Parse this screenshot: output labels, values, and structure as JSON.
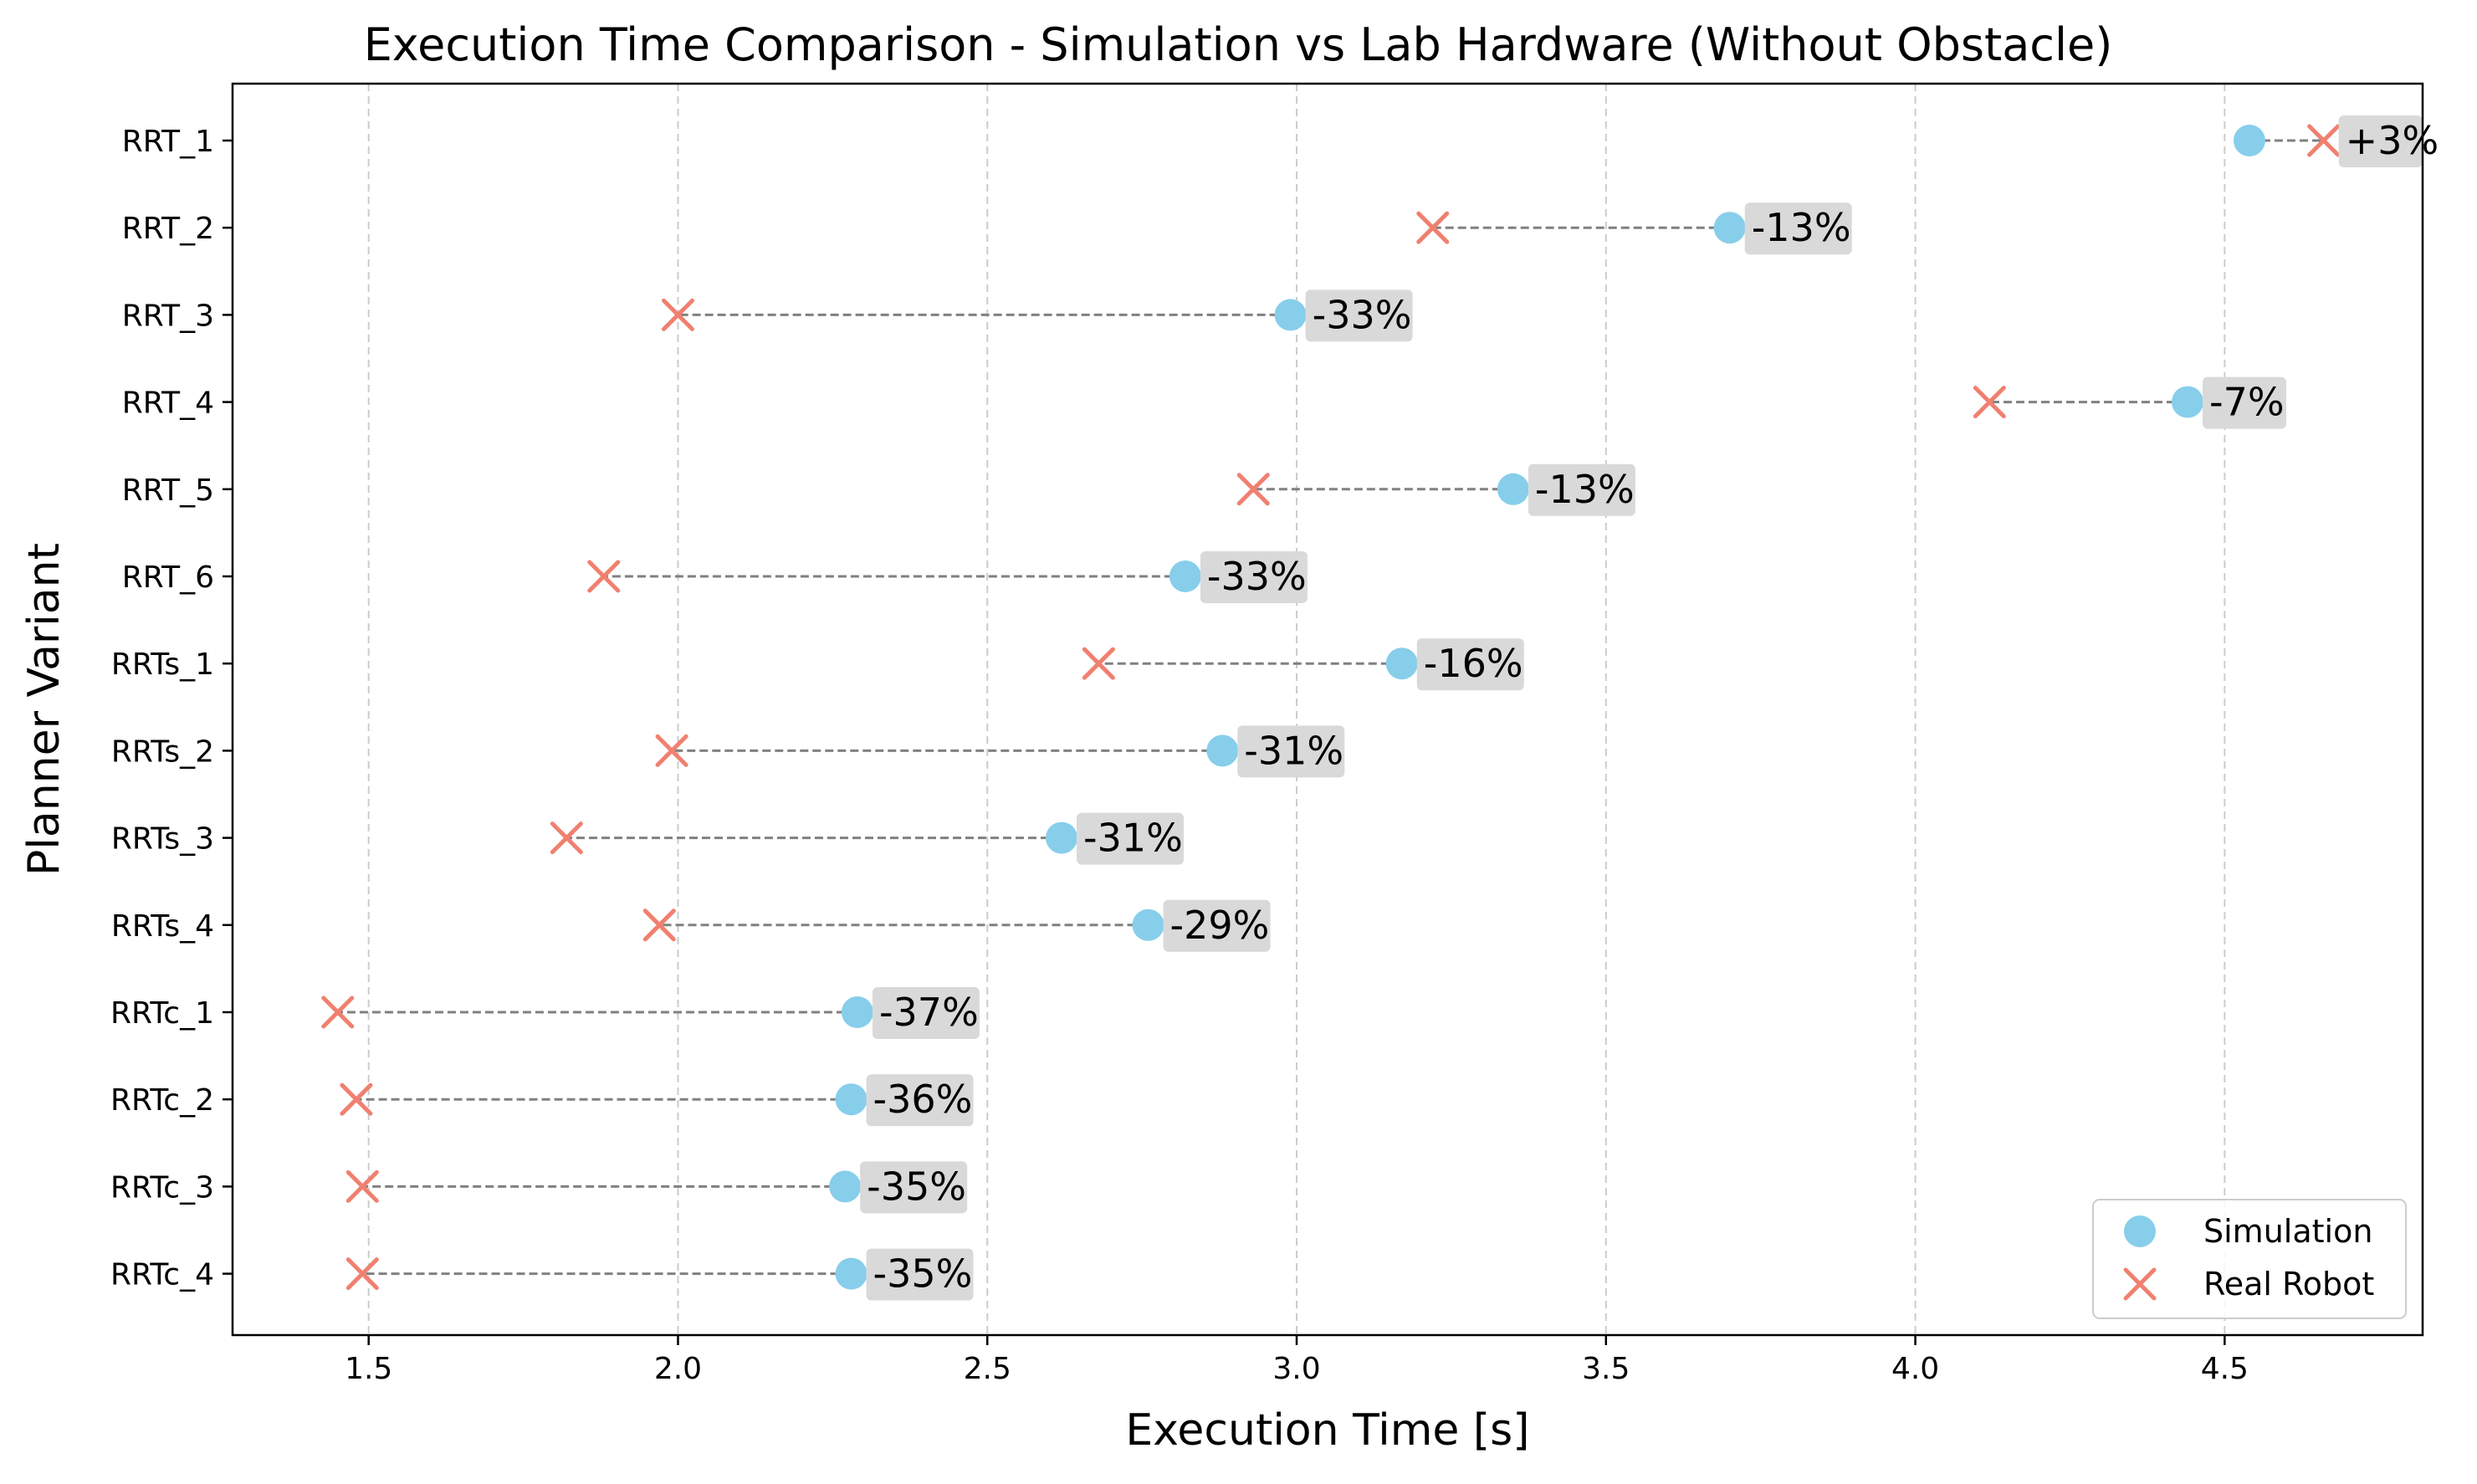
{
  "chart_data": {
    "type": "scatter",
    "title": "Execution Time Comparison - Simulation vs Lab Hardware (Without Obstacle)",
    "xlabel": "Execution Time [s]",
    "ylabel": "Planner Variant",
    "xlim": [
      1.28,
      4.82
    ],
    "xticks": [
      "1.5",
      "2.0",
      "2.5",
      "3.0",
      "3.5",
      "4.0",
      "4.5"
    ],
    "xtick_values": [
      1.5,
      2.0,
      2.5,
      3.0,
      3.5,
      4.0,
      4.5
    ],
    "grid": "vertical-dashed",
    "legend_position": "bottom-right",
    "categories": [
      "RRT_1",
      "RRT_2",
      "RRT_3",
      "RRT_4",
      "RRT_5",
      "RRT_6",
      "RRTs_1",
      "RRTs_2",
      "RRTs_3",
      "RRTs_4",
      "RRTc_1",
      "RRTc_2",
      "RRTc_3",
      "RRTc_4"
    ],
    "series": [
      {
        "name": "Simulation",
        "marker": "circle",
        "color": "#87CEEB",
        "values": [
          4.54,
          3.7,
          2.99,
          4.44,
          3.35,
          2.82,
          3.17,
          2.88,
          2.62,
          2.76,
          2.29,
          2.28,
          2.27,
          2.28
        ]
      },
      {
        "name": "Real Robot",
        "marker": "x",
        "color": "#F08070",
        "values": [
          4.66,
          3.22,
          2.0,
          4.12,
          2.93,
          1.88,
          2.68,
          1.99,
          1.82,
          1.97,
          1.45,
          1.48,
          1.49,
          1.49
        ]
      }
    ],
    "difference_labels": [
      "+3%",
      "-13%",
      "-33%",
      "-7%",
      "-13%",
      "-33%",
      "-16%",
      "-31%",
      "-31%",
      "-29%",
      "-37%",
      "-36%",
      "-35%",
      "-35%"
    ],
    "connector_color": "#808080",
    "label_box_color": "#D9D9D9"
  }
}
